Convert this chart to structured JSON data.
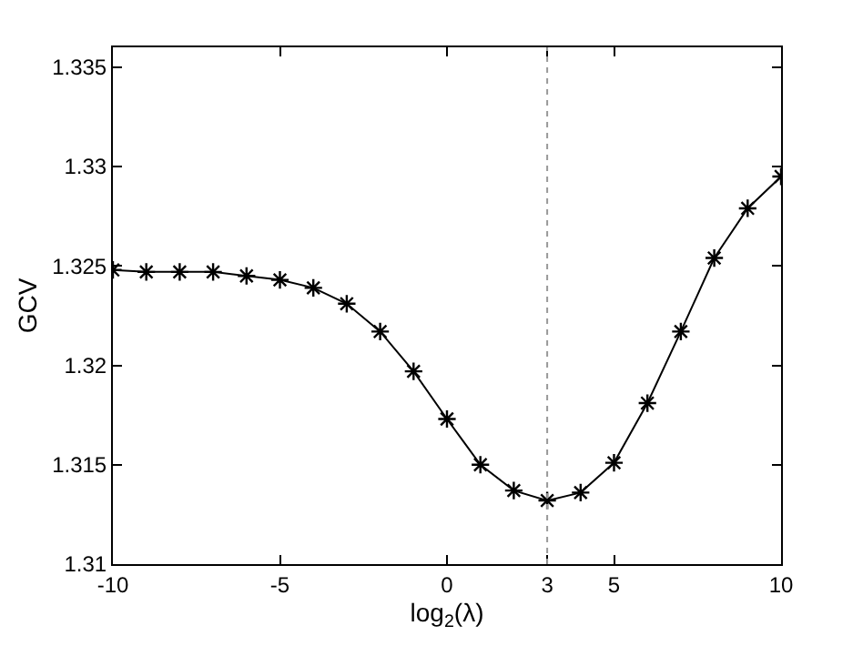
{
  "chart_data": {
    "type": "line",
    "xlabel": "log$_{2}$(λ)",
    "ylabel": "GCV",
    "x": [
      -10,
      -9,
      -8,
      -7,
      -6,
      -5,
      -4,
      -3,
      -2,
      -1,
      0,
      1,
      2,
      3,
      4,
      5,
      6,
      7,
      8,
      9,
      10
    ],
    "series": [
      {
        "color": "#000000",
        "values": [
          1.3248,
          1.3247,
          1.3247,
          1.3247,
          1.3245,
          1.3243,
          1.3239,
          1.3231,
          1.3217,
          1.3197,
          1.3173,
          1.315,
          1.3137,
          1.3132,
          1.3136,
          1.3151,
          1.3181,
          1.3217,
          1.3254,
          1.3279,
          1.3295
        ]
      }
    ],
    "xlim": [
      -10,
      10
    ],
    "xticks": [
      -10,
      -5,
      0,
      3,
      5,
      10
    ],
    "ylim": [
      1.31,
      1.336
    ],
    "yticks": [
      1.31,
      1.315,
      1.32,
      1.325,
      1.33,
      1.335
    ],
    "ref_lines": [
      {
        "axis": "x",
        "value": 3,
        "color": "#999999",
        "line_style": "dotted"
      }
    ],
    "marker": "cross",
    "line_style": "solid"
  }
}
